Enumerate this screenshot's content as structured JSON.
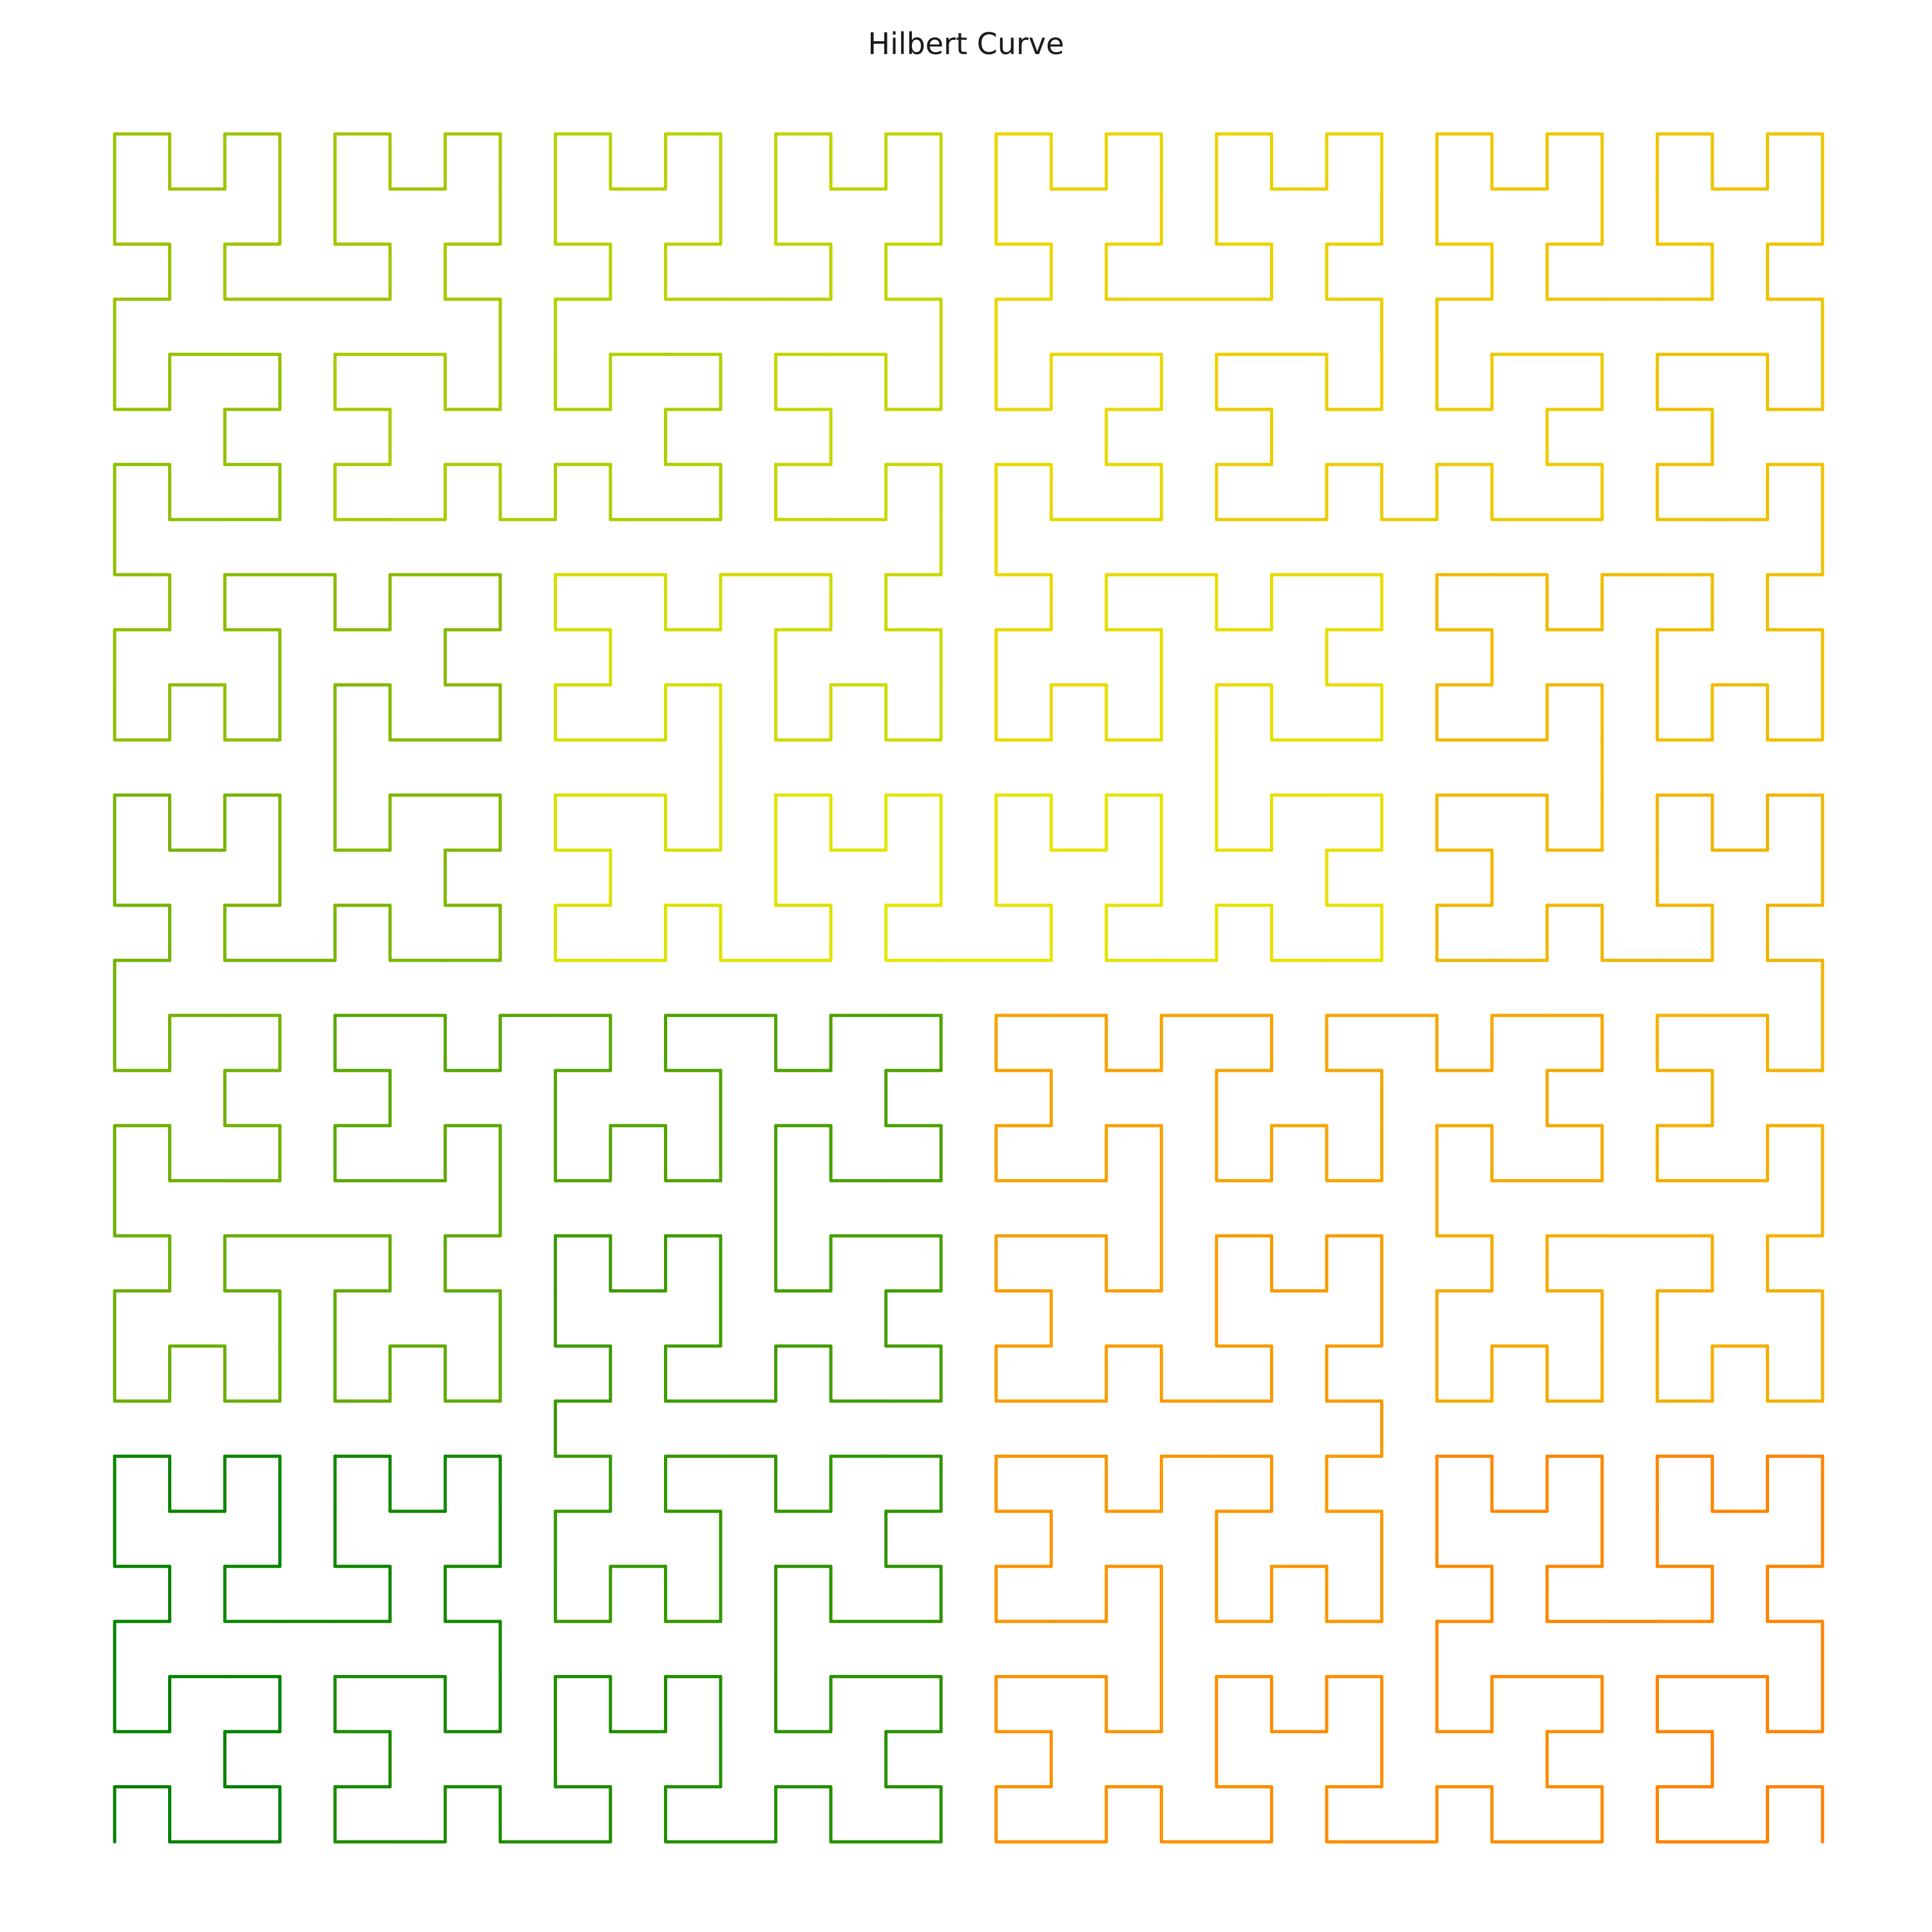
{
  "title": "Hilbert Curve",
  "curve": {
    "order": 5,
    "grid_size": 32,
    "colors": {
      "start": "#008000",
      "middle": "#e6e600",
      "end": "#ff8000"
    }
  }
}
